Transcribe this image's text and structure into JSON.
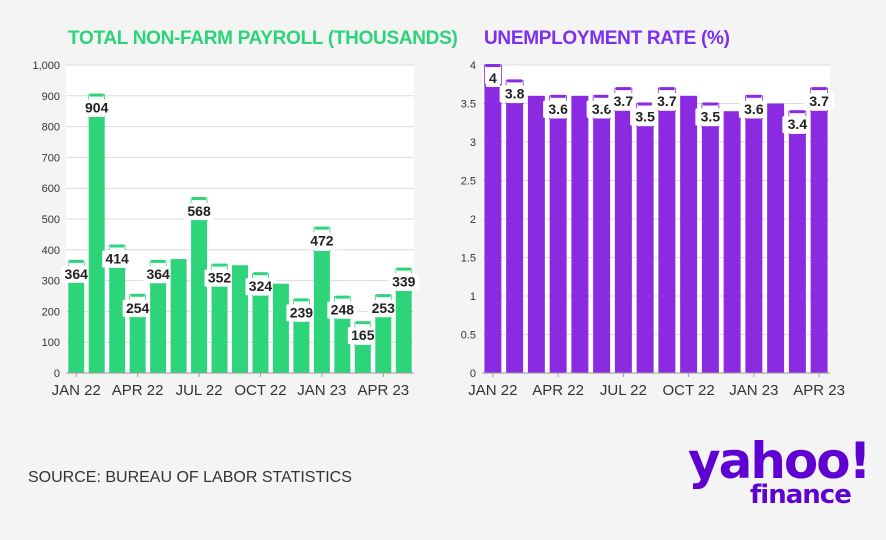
{
  "chart_data": [
    {
      "type": "bar",
      "title": "TOTAL NON-FARM PAYROLL (THOUSANDS)",
      "color": "#2ed47a",
      "ylim": [
        0,
        1000
      ],
      "yticks": [
        0,
        100,
        200,
        300,
        400,
        500,
        600,
        700,
        800,
        900,
        1000
      ],
      "ytick_labels": [
        "0",
        "100",
        "200",
        "300",
        "400",
        "500",
        "600",
        "700",
        "800",
        "900",
        "1,000"
      ],
      "x_tick_labels": [
        "JAN 22",
        "APR 22",
        "JUL 22",
        "OCT 22",
        "JAN 23",
        "APR 23"
      ],
      "x_tick_indices": [
        0,
        3,
        6,
        9,
        12,
        15
      ],
      "grid": true,
      "series": [
        {
          "revised": [
            364,
            904,
            414,
            254,
            364,
            370,
            568,
            352,
            350,
            324,
            290,
            239,
            472,
            248,
            165,
            253,
            339
          ],
          "current": [
            300,
            830,
            340,
            180,
            290,
            370,
            495,
            280,
            350,
            250,
            290,
            165,
            395,
            175,
            90,
            180,
            265
          ]
        }
      ],
      "data_labels": [
        "364",
        "904",
        "414",
        "254",
        "364",
        "",
        "568",
        "352",
        "",
        "324",
        "",
        "239",
        "472",
        "248",
        "165",
        "253",
        "339"
      ]
    },
    {
      "type": "bar",
      "title": "UNEMPLOYMENT RATE (%)",
      "color": "#8a2be2",
      "ylim": [
        0,
        4
      ],
      "yticks": [
        0,
        0.5,
        1,
        1.5,
        2,
        2.5,
        3,
        3.5,
        4
      ],
      "ytick_labels": [
        "0",
        "0.5",
        "1",
        "1.5",
        "2",
        "2.5",
        "3",
        "3.5",
        "4"
      ],
      "x_tick_labels": [
        "JAN 22",
        "APR 22",
        "JUL 22",
        "OCT 22",
        "JAN 23",
        "APR 23"
      ],
      "x_tick_indices": [
        0,
        3,
        6,
        9,
        12,
        15
      ],
      "grid": true,
      "series": [
        {
          "revised": [
            4.0,
            3.8,
            3.6,
            3.6,
            3.6,
            3.6,
            3.7,
            3.5,
            3.7,
            3.6,
            3.5,
            3.4,
            3.6,
            3.5,
            3.4,
            3.7
          ],
          "current": [
            3.75,
            3.5,
            3.6,
            3.3,
            3.6,
            3.3,
            3.4,
            3.2,
            3.4,
            3.6,
            3.2,
            3.4,
            3.3,
            3.5,
            3.1,
            3.4
          ]
        }
      ],
      "data_labels": [
        "4",
        "3.8",
        "",
        "3.6",
        "",
        "3.6",
        "3.7",
        "3.5",
        "3.7",
        "",
        "3.5",
        "",
        "3.6",
        "",
        "3.4",
        "3.7"
      ]
    }
  ],
  "source": "SOURCE: BUREAU OF LABOR STATISTICS",
  "logo": {
    "yahoo": "yahoo!",
    "finance": "finance"
  }
}
